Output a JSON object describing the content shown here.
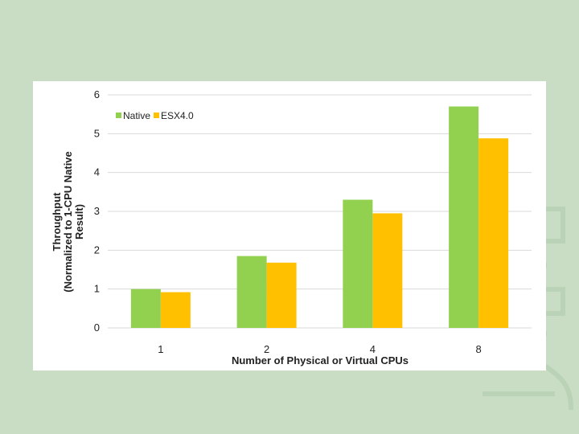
{
  "colors": {
    "background": "#c9ddc5",
    "native": "#92d050",
    "esx": "#ffc000",
    "grid": "#d9d9d9"
  },
  "chart_data": {
    "type": "bar",
    "categories": [
      "1",
      "2",
      "4",
      "8"
    ],
    "series": [
      {
        "name": "Native",
        "color": "#92d050",
        "values": [
          1.0,
          1.85,
          3.3,
          5.7
        ]
      },
      {
        "name": "ESX4.0",
        "color": "#ffc000",
        "values": [
          0.92,
          1.68,
          2.95,
          4.88
        ]
      }
    ],
    "title": "",
    "xlabel": "Number of Physical or Virtual CPUs",
    "ylabel_lines": [
      "Throughput",
      "(Normalized to 1-CPU Native",
      "Result)"
    ],
    "ylim": [
      0,
      6
    ],
    "yticks": [
      "0",
      "1",
      "2",
      "3",
      "4",
      "5",
      "6"
    ],
    "grid": true,
    "legend_position": "top-left"
  }
}
